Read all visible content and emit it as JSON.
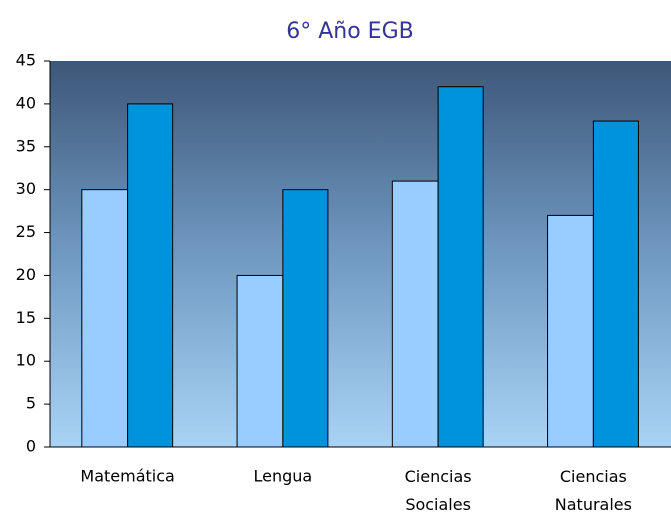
{
  "chart_data": {
    "type": "bar",
    "title": "6° Año EGB",
    "categories": [
      "Matemática",
      "Lengua",
      "Ciencias Sociales",
      "Ciencias Naturales"
    ],
    "series": [
      {
        "color": "#99ccff",
        "values": [
          30,
          20,
          31,
          27
        ]
      },
      {
        "color": "#0093dd",
        "values": [
          40,
          30,
          42,
          38
        ]
      }
    ],
    "ylim": [
      0,
      45
    ],
    "yticks": [
      0,
      5,
      10,
      15,
      20,
      25,
      30,
      35,
      40,
      45
    ]
  }
}
